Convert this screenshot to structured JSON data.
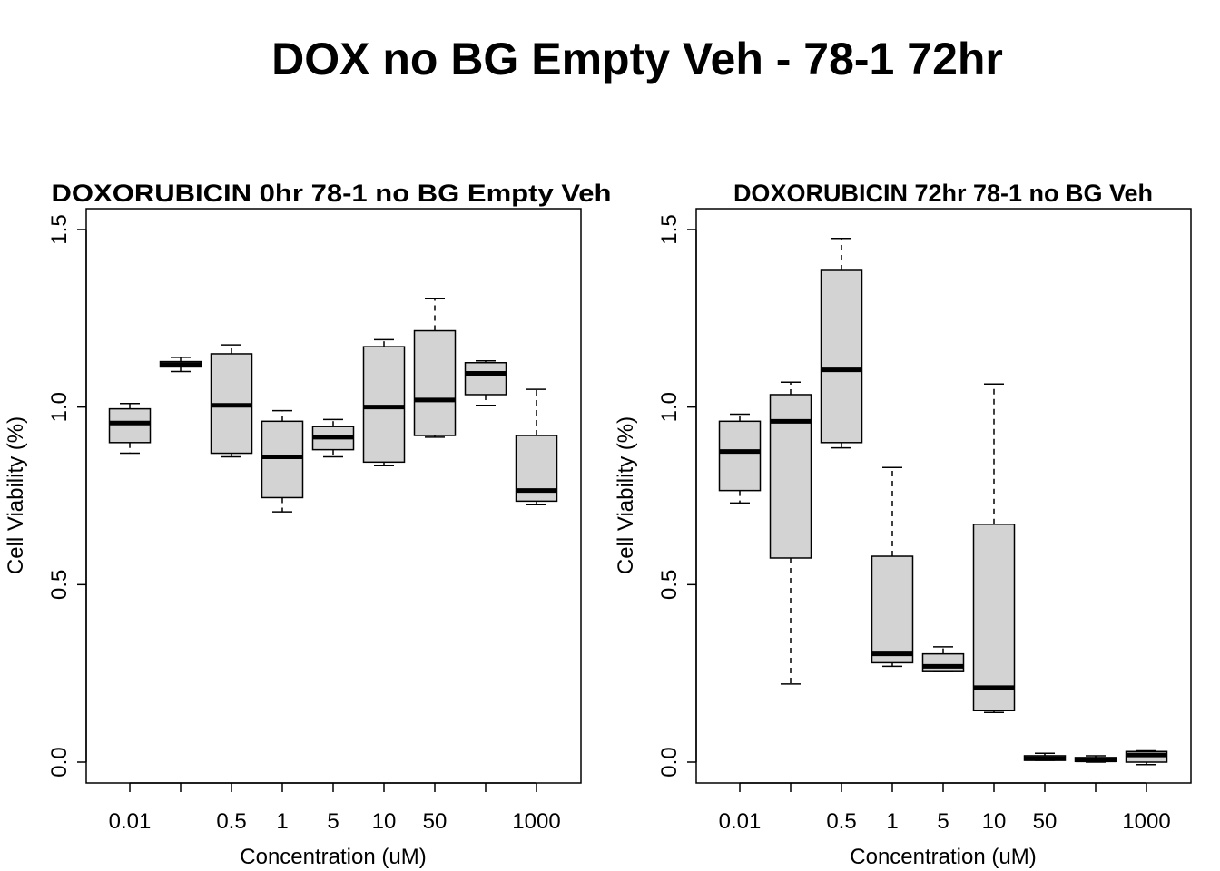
{
  "title": "DOX no BG Empty Veh - 78-1 72hr",
  "chart_data": [
    {
      "type": "box",
      "title": "DOXORUBICIN 0hr 78-1 no BG Empty Veh",
      "xlabel": "Concentration (uM)",
      "ylabel": "Cell Viability (%)",
      "ylim": [
        0,
        1.5
      ],
      "yticks": [
        "0.0",
        "0.5",
        "1.0",
        "1.5"
      ],
      "categories": [
        "0.01",
        "",
        "0.5",
        "1",
        "5",
        "10",
        "50",
        "",
        "1000"
      ],
      "boxes": [
        {
          "whisker_low": 0.87,
          "q1": 0.9,
          "median": 0.955,
          "q3": 0.995,
          "whisker_high": 1.01
        },
        {
          "whisker_low": 1.1,
          "q1": 1.113,
          "median": 1.12,
          "q3": 1.128,
          "whisker_high": 1.14
        },
        {
          "whisker_low": 0.86,
          "q1": 0.87,
          "median": 1.005,
          "q3": 1.15,
          "whisker_high": 1.175
        },
        {
          "whisker_low": 0.705,
          "q1": 0.745,
          "median": 0.86,
          "q3": 0.96,
          "whisker_high": 0.99
        },
        {
          "whisker_low": 0.86,
          "q1": 0.88,
          "median": 0.915,
          "q3": 0.945,
          "whisker_high": 0.965
        },
        {
          "whisker_low": 0.835,
          "q1": 0.845,
          "median": 1.0,
          "q3": 1.17,
          "whisker_high": 1.19
        },
        {
          "whisker_low": 0.915,
          "q1": 0.92,
          "median": 1.02,
          "q3": 1.215,
          "whisker_high": 1.305
        },
        {
          "whisker_low": 1.005,
          "q1": 1.035,
          "median": 1.095,
          "q3": 1.125,
          "whisker_high": 1.13
        },
        {
          "whisker_low": 0.725,
          "q1": 0.735,
          "median": 0.765,
          "q3": 0.92,
          "whisker_high": 1.05
        }
      ]
    },
    {
      "type": "box",
      "title": "DOXORUBICIN 72hr 78-1 no BG Veh",
      "xlabel": "Concentration (uM)",
      "ylabel": "Cell Viability (%)",
      "ylim": [
        0,
        1.5
      ],
      "yticks": [
        "0.0",
        "0.5",
        "1.0",
        "1.5"
      ],
      "categories": [
        "0.01",
        "",
        "0.5",
        "1",
        "5",
        "10",
        "50",
        "",
        "1000"
      ],
      "boxes": [
        {
          "whisker_low": 0.73,
          "q1": 0.765,
          "median": 0.875,
          "q3": 0.96,
          "whisker_high": 0.98
        },
        {
          "whisker_low": 0.22,
          "q1": 0.575,
          "median": 0.96,
          "q3": 1.035,
          "whisker_high": 1.07
        },
        {
          "whisker_low": 0.885,
          "q1": 0.9,
          "median": 1.105,
          "q3": 1.385,
          "whisker_high": 1.475
        },
        {
          "whisker_low": 0.27,
          "q1": 0.28,
          "median": 0.305,
          "q3": 0.58,
          "whisker_high": 0.83
        },
        {
          "whisker_low": 0.255,
          "q1": 0.255,
          "median": 0.27,
          "q3": 0.305,
          "whisker_high": 0.325
        },
        {
          "whisker_low": 0.14,
          "q1": 0.145,
          "median": 0.21,
          "q3": 0.67,
          "whisker_high": 1.065
        },
        {
          "whisker_low": 0.005,
          "q1": 0.005,
          "median": 0.01,
          "q3": 0.018,
          "whisker_high": 0.025
        },
        {
          "whisker_low": 0.0,
          "q1": 0.002,
          "median": 0.006,
          "q3": 0.013,
          "whisker_high": 0.018
        },
        {
          "whisker_low": -0.007,
          "q1": 0.0,
          "median": 0.02,
          "q3": 0.03,
          "whisker_high": 0.032
        }
      ]
    }
  ]
}
